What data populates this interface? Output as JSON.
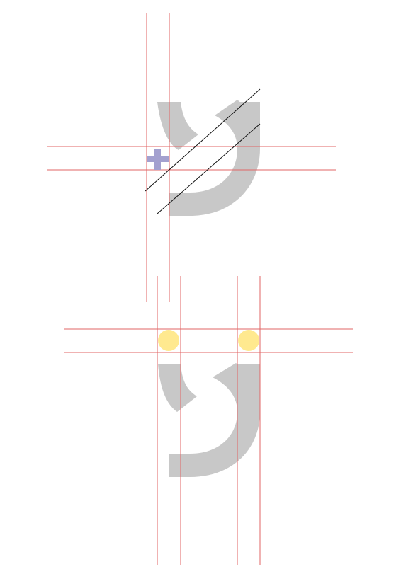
{
  "colors": {
    "background": "#ffffff",
    "glyph_fill": "#c8c8c8",
    "guide_line": "#e06666",
    "diagonal_line": "#111111",
    "crosshair_marker": "#a3a0cf",
    "junction_dot": "#ffe98f"
  },
  "figures": [
    {
      "name": "glyph-y-top",
      "glyph_shape": "y",
      "horizontal_guide_count": 2,
      "vertical_guide_count": 2,
      "diagonal_guide_count": 2,
      "markers": [
        "crosshair-marker"
      ]
    },
    {
      "name": "glyph-y-bottom",
      "glyph_shape": "y",
      "horizontal_guide_count": 2,
      "vertical_guide_count": 4,
      "diagonal_guide_count": 0,
      "markers": [
        "junction-dot-left",
        "junction-dot-right"
      ]
    }
  ]
}
